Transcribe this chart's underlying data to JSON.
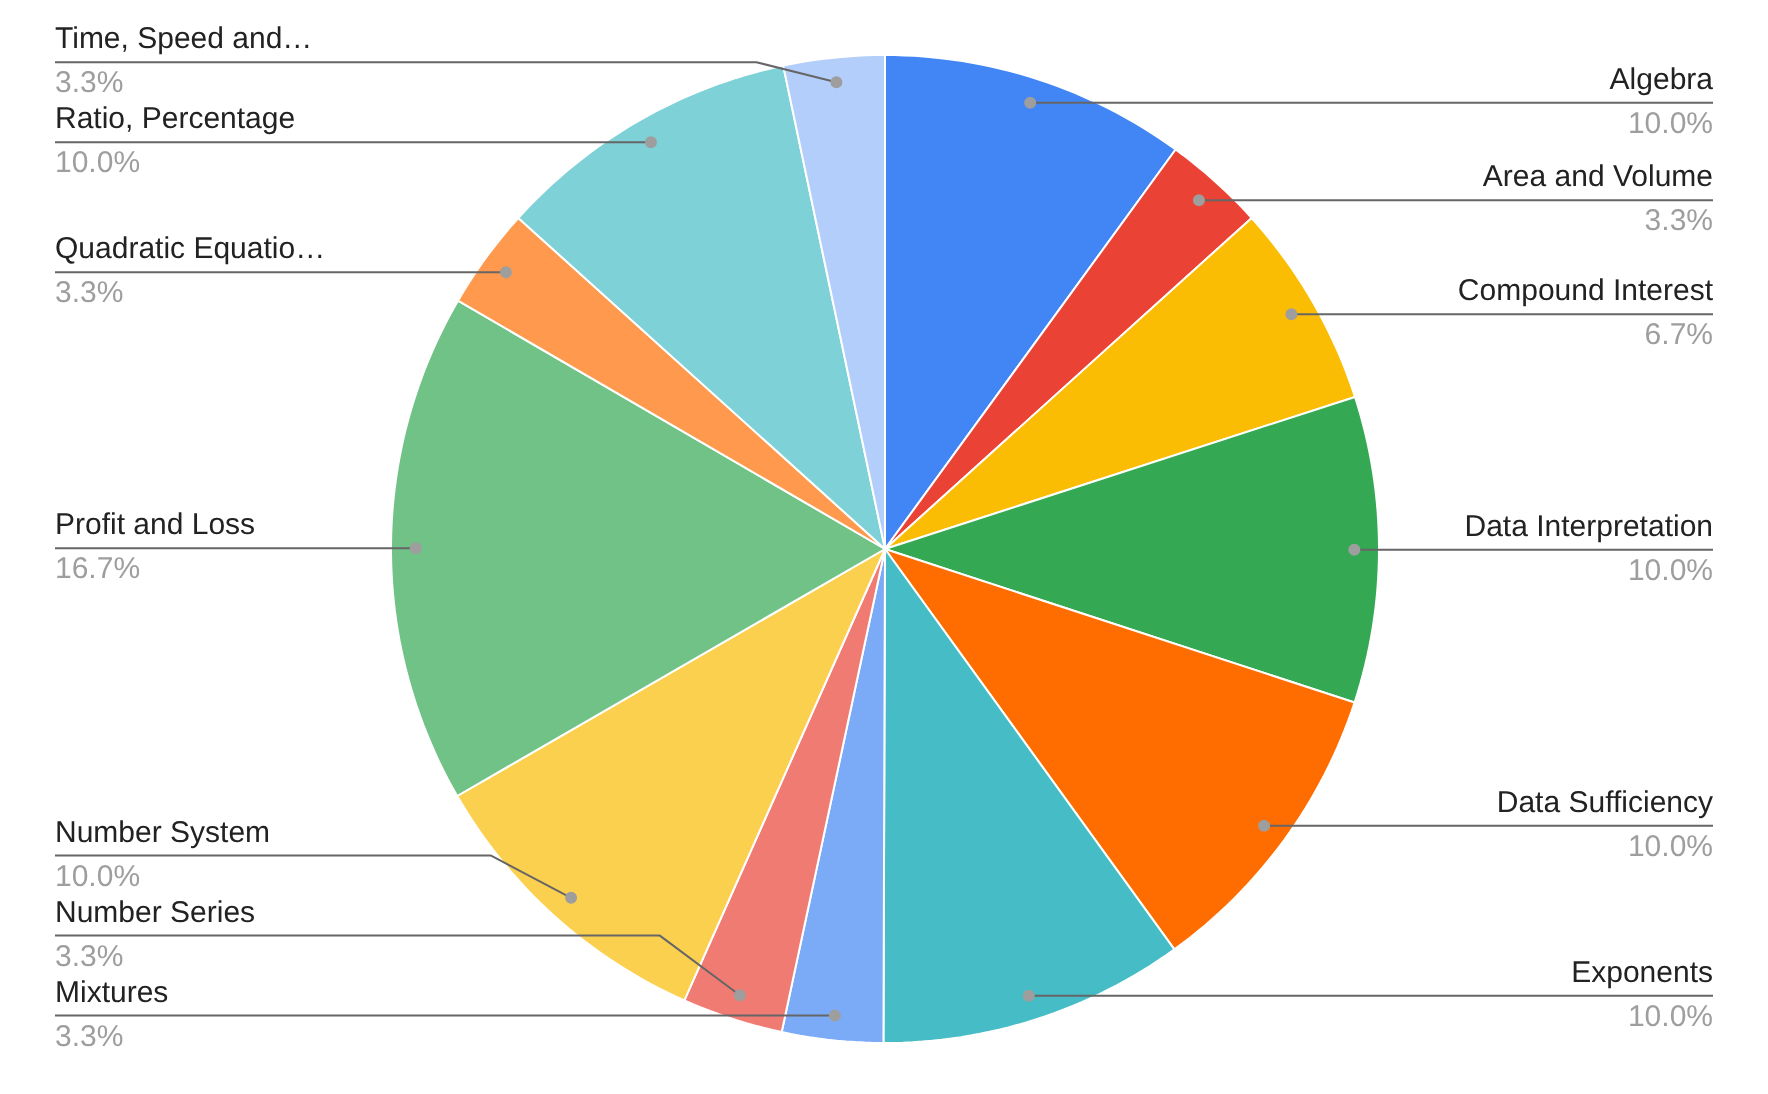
{
  "chart_data": {
    "type": "pie",
    "categories": [
      "Algebra",
      "Area and Volume",
      "Compound Interest",
      "Data Interpretation",
      "Data Sufficiency",
      "Exponents",
      "Mixtures",
      "Number Series",
      "Number System",
      "Profit and Loss",
      "Quadratic Equatio…",
      "Ratio, Percentage",
      "Time, Speed and…"
    ],
    "values": [
      10.0,
      3.3,
      6.7,
      10.0,
      10.0,
      10.0,
      3.3,
      3.3,
      10.0,
      16.7,
      3.3,
      10.0,
      3.3
    ],
    "value_labels": [
      "10.0%",
      "3.3%",
      "6.7%",
      "10.0%",
      "10.0%",
      "10.0%",
      "3.3%",
      "3.3%",
      "10.0%",
      "16.7%",
      "3.3%",
      "10.0%",
      "3.3%"
    ],
    "colors": [
      "#4285f4",
      "#ea4335",
      "#fbbc04",
      "#34a853",
      "#ff6d01",
      "#46bdc6",
      "#7baaf7",
      "#f07b72",
      "#fcd04f",
      "#71c287",
      "#ff994d",
      "#7ed1d7",
      "#b3cefb"
    ]
  }
}
